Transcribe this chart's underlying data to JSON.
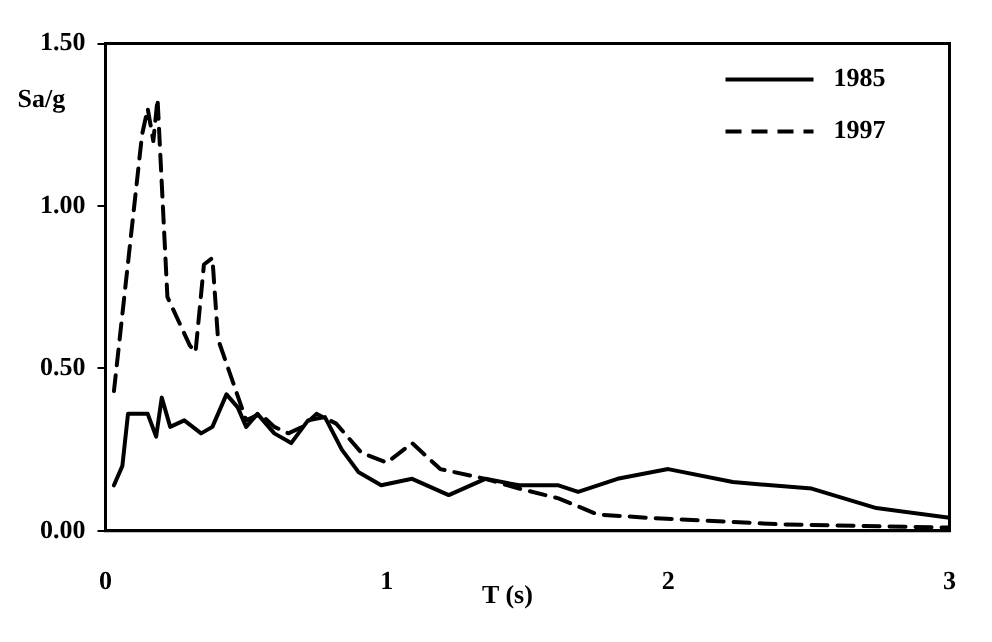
{
  "chart_data": {
    "type": "line",
    "xlabel": "T (s)",
    "ylabel": "Sa/g",
    "xlim": [
      0,
      3
    ],
    "xticks": [
      0,
      1,
      2,
      3
    ],
    "ylim": [
      0,
      1.5
    ],
    "yticks": [
      {
        "value": 0,
        "label": "0.00"
      },
      {
        "value": 0.5,
        "label": "0.50"
      },
      {
        "value": 1,
        "label": "1.00"
      },
      {
        "value": 1.5,
        "label": "1.50"
      }
    ],
    "grid": false,
    "legend": "top right",
    "marker": "none",
    "series": [
      {
        "name": "1985",
        "color": "#000000",
        "line_style": "solid",
        "x": [
          0.03,
          0.06,
          0.08,
          0.15,
          0.18,
          0.2,
          0.23,
          0.28,
          0.34,
          0.38,
          0.43,
          0.47,
          0.5,
          0.54,
          0.6,
          0.66,
          0.72,
          0.78,
          0.84,
          0.9,
          0.98,
          1.09,
          1.22,
          1.35,
          1.47,
          1.61,
          1.68,
          1.82,
          2.0,
          2.23,
          2.51,
          2.74,
          3.0
        ],
        "values": [
          0.14,
          0.2,
          0.36,
          0.36,
          0.29,
          0.41,
          0.32,
          0.34,
          0.3,
          0.32,
          0.42,
          0.38,
          0.32,
          0.36,
          0.3,
          0.27,
          0.34,
          0.35,
          0.25,
          0.18,
          0.14,
          0.16,
          0.11,
          0.16,
          0.14,
          0.14,
          0.12,
          0.16,
          0.19,
          0.15,
          0.13,
          0.07,
          0.04
        ]
      },
      {
        "name": "1997",
        "color": "#000000",
        "line_style": "dashed",
        "x": [
          0.03,
          0.13,
          0.15,
          0.17,
          0.185,
          0.22,
          0.3,
          0.32,
          0.35,
          0.38,
          0.4,
          0.46,
          0.5,
          0.55,
          0.6,
          0.65,
          0.7,
          0.75,
          0.82,
          0.91,
          1.0,
          1.09,
          1.19,
          1.35,
          1.47,
          1.61,
          1.75,
          1.93,
          2.4,
          3.0
        ],
        "values": [
          0.43,
          1.22,
          1.3,
          1.2,
          1.33,
          0.72,
          0.57,
          0.55,
          0.82,
          0.84,
          0.59,
          0.44,
          0.34,
          0.36,
          0.32,
          0.3,
          0.32,
          0.36,
          0.33,
          0.24,
          0.21,
          0.27,
          0.19,
          0.16,
          0.13,
          0.1,
          0.05,
          0.04,
          0.02,
          0.01
        ]
      }
    ]
  }
}
